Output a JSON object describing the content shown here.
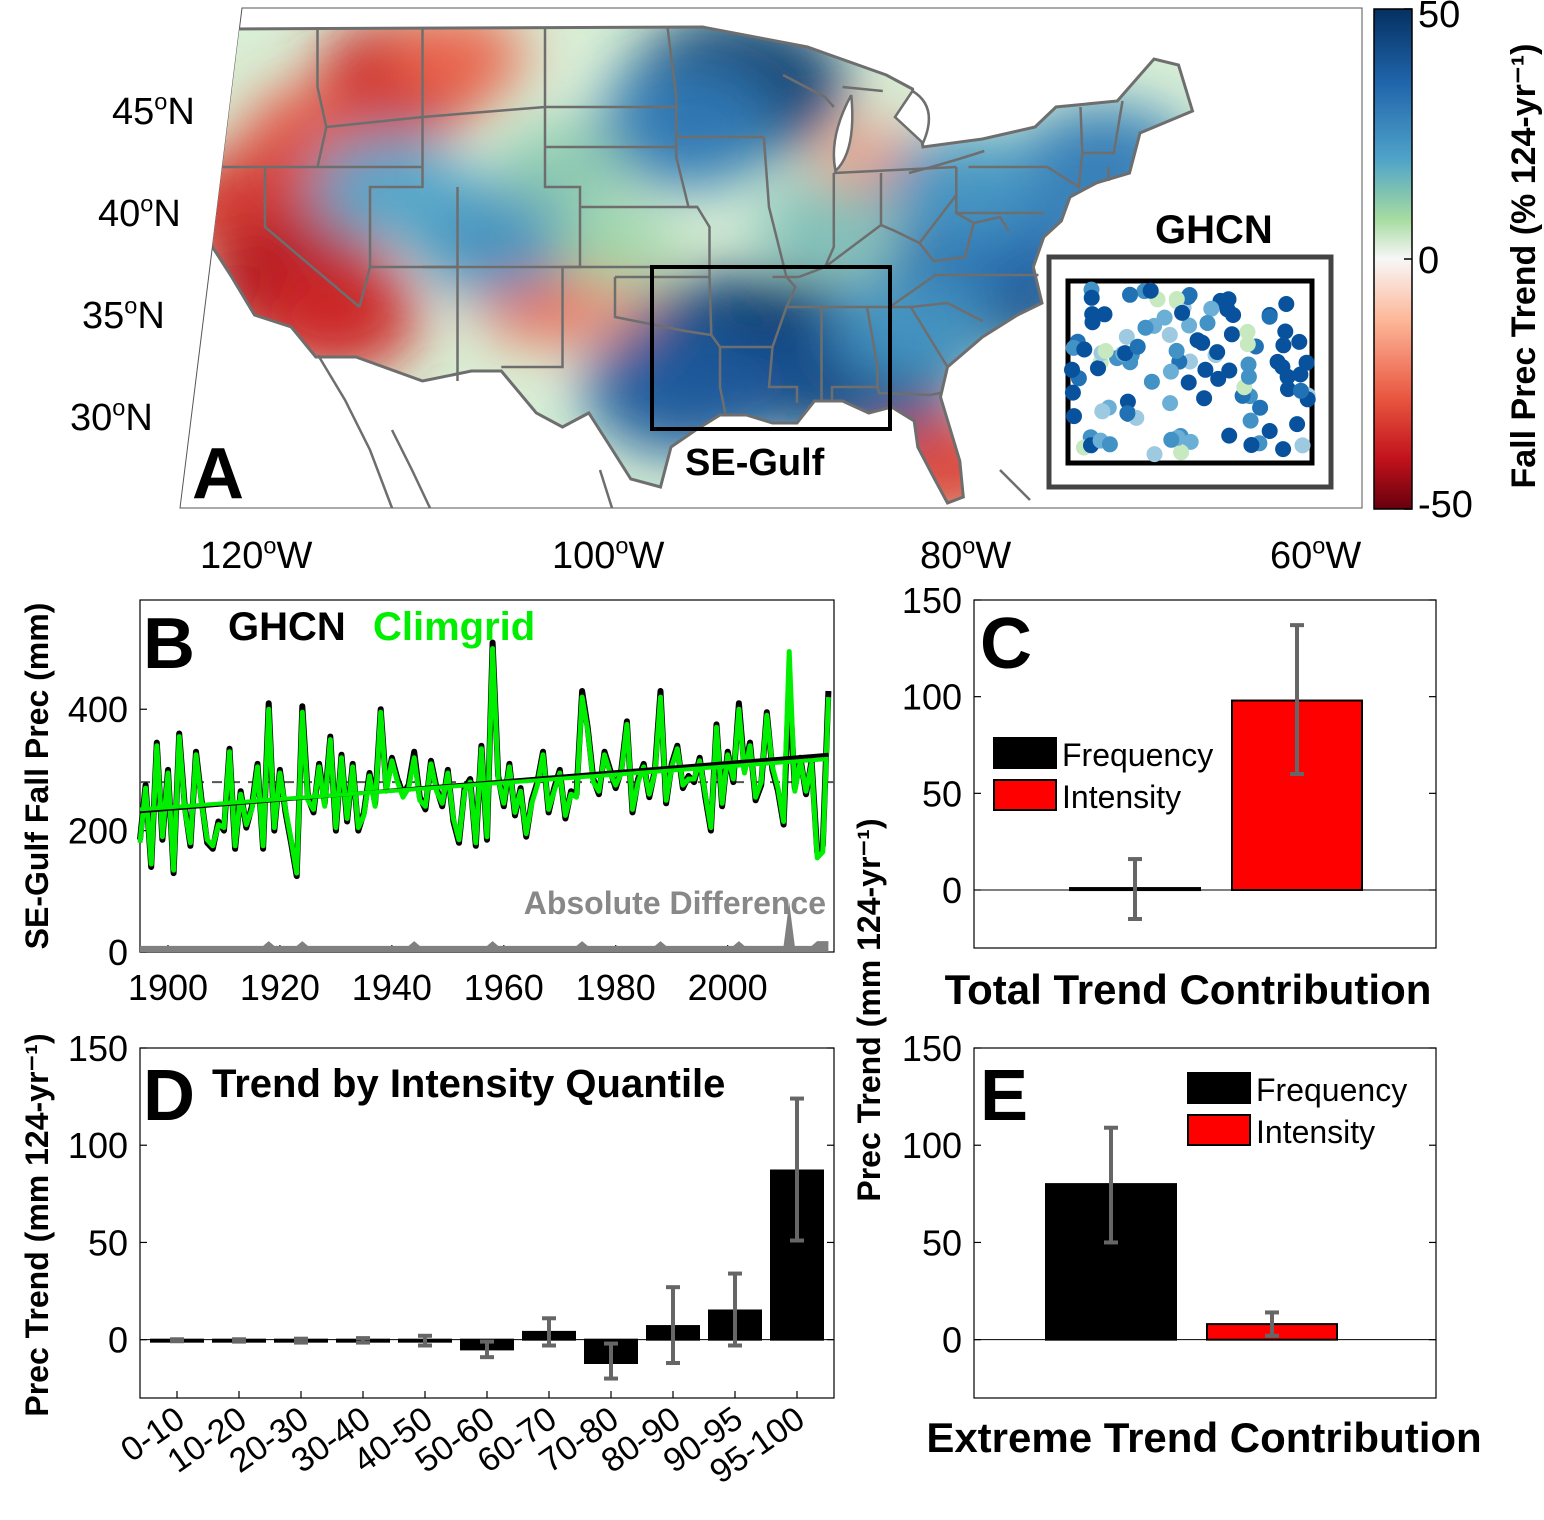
{
  "panels": {
    "a": "A",
    "b": "B",
    "c": "C",
    "d": "D",
    "e": "E"
  },
  "colors": {
    "frequency": "#000000",
    "intensity": "#ff0000",
    "ghcn": "#000000",
    "climgrid": "#00ee00",
    "difference": "#808080",
    "errorbar": "#666666",
    "state_lines": "#6e6e6e"
  },
  "chart_data": [
    {
      "panel": "A",
      "type": "heatmap",
      "title": "",
      "region_label": "SE-Gulf",
      "inset_label": "GHCN",
      "lat_ticks": [
        "45°N",
        "40°N",
        "35°N",
        "30°N"
      ],
      "lat_tick_values": [
        45,
        40,
        35,
        30
      ],
      "lon_ticks": [
        "120°W",
        "100°W",
        "80°W",
        "60°W"
      ],
      "lon_tick_values": [
        -120,
        -100,
        -80,
        -60
      ],
      "colorbar": {
        "label": "Fall Prec Trend (% 124-yr⁻¹)",
        "ticks": [
          "50",
          "0",
          "-50"
        ],
        "tick_values": [
          50,
          0,
          -50
        ],
        "range": [
          -50,
          50
        ],
        "colormap": "red-white-green-blue"
      },
      "blobs": [
        {
          "lon": -112,
          "lat": 46.5,
          "v": -32
        },
        {
          "lon": -117,
          "lat": 43.5,
          "v": -22
        },
        {
          "lon": -109,
          "lat": 47.5,
          "v": -18
        },
        {
          "lon": -121,
          "lat": 40,
          "v": -28
        },
        {
          "lon": -118,
          "lat": 36,
          "v": -38
        },
        {
          "lon": -116,
          "lat": 34.5,
          "v": -30
        },
        {
          "lon": -104,
          "lat": 35.5,
          "v": -18
        },
        {
          "lon": -98,
          "lat": 34,
          "v": -12
        },
        {
          "lon": -85,
          "lat": 42,
          "v": -12
        },
        {
          "lon": -81,
          "lat": 27,
          "v": -25
        },
        {
          "lon": -93,
          "lat": 46,
          "v": 48
        },
        {
          "lon": -96,
          "lat": 44,
          "v": 35
        },
        {
          "lon": -107,
          "lat": 38.5,
          "v": 30
        },
        {
          "lon": -113,
          "lat": 41,
          "v": 25
        },
        {
          "lon": -93,
          "lat": 33,
          "v": 48
        },
        {
          "lon": -89,
          "lat": 32.5,
          "v": 50
        },
        {
          "lon": -86,
          "lat": 32,
          "v": 45
        },
        {
          "lon": -96,
          "lat": 31,
          "v": 42
        },
        {
          "lon": -79,
          "lat": 36,
          "v": 45
        },
        {
          "lon": -78,
          "lat": 39,
          "v": 38
        },
        {
          "lon": -72,
          "lat": 42,
          "v": 35
        },
        {
          "lon": -80,
          "lat": 41,
          "v": 28
        },
        {
          "lon": -88,
          "lat": 39,
          "v": 18
        },
        {
          "lon": -100,
          "lat": 38,
          "v": 12
        },
        {
          "lon": -103,
          "lat": 42,
          "v": 15
        },
        {
          "lon": -83,
          "lat": 34,
          "v": 28
        }
      ],
      "inset_stations": {
        "count": 110,
        "seed": 7
      }
    },
    {
      "panel": "B",
      "type": "line",
      "title": "",
      "legend": [
        "GHCN",
        "Climgrid"
      ],
      "xlabel": "",
      "ylabel": "SE-Gulf Fall Prec (mm)",
      "xlim": [
        1895,
        2019
      ],
      "ylim": [
        0,
        580
      ],
      "x_ticks": [
        "1900",
        "1920",
        "1940",
        "1960",
        "1980",
        "2000"
      ],
      "x_tick_values": [
        1900,
        1920,
        1940,
        1960,
        1980,
        2000
      ],
      "y_ticks": [
        "0",
        "200",
        "400"
      ],
      "y_tick_values": [
        0,
        200,
        400
      ],
      "mean_line": 280,
      "difference_label": "Absolute Difference",
      "x": [
        1895,
        1896,
        1897,
        1898,
        1899,
        1900,
        1901,
        1902,
        1903,
        1904,
        1905,
        1906,
        1907,
        1908,
        1909,
        1910,
        1911,
        1912,
        1913,
        1914,
        1915,
        1916,
        1917,
        1918,
        1919,
        1920,
        1921,
        1922,
        1923,
        1924,
        1925,
        1926,
        1927,
        1928,
        1929,
        1930,
        1931,
        1932,
        1933,
        1934,
        1935,
        1936,
        1937,
        1938,
        1939,
        1940,
        1941,
        1942,
        1943,
        1944,
        1945,
        1946,
        1947,
        1948,
        1949,
        1950,
        1951,
        1952,
        1953,
        1954,
        1955,
        1956,
        1957,
        1958,
        1959,
        1960,
        1961,
        1962,
        1963,
        1964,
        1965,
        1966,
        1967,
        1968,
        1969,
        1970,
        1971,
        1972,
        1973,
        1974,
        1975,
        1976,
        1977,
        1978,
        1979,
        1980,
        1981,
        1982,
        1983,
        1984,
        1985,
        1986,
        1987,
        1988,
        1989,
        1990,
        1991,
        1992,
        1993,
        1994,
        1995,
        1996,
        1997,
        1998,
        1999,
        2000,
        2001,
        2002,
        2003,
        2004,
        2005,
        2006,
        2007,
        2008,
        2009,
        2010,
        2011,
        2012,
        2013,
        2014,
        2015,
        2016,
        2017,
        2018
      ],
      "series": [
        {
          "name": "GHCN",
          "values": [
            185,
            275,
            140,
            345,
            185,
            300,
            130,
            360,
            240,
            175,
            330,
            250,
            180,
            170,
            215,
            200,
            335,
            170,
            265,
            205,
            240,
            310,
            170,
            410,
            200,
            300,
            230,
            180,
            125,
            405,
            255,
            230,
            310,
            245,
            355,
            200,
            325,
            215,
            310,
            200,
            230,
            295,
            245,
            400,
            270,
            320,
            285,
            260,
            275,
            330,
            255,
            235,
            315,
            270,
            240,
            300,
            215,
            180,
            270,
            285,
            175,
            340,
            185,
            510,
            290,
            240,
            310,
            225,
            270,
            190,
            250,
            280,
            330,
            230,
            270,
            300,
            220,
            265,
            260,
            430,
            370,
            285,
            260,
            330,
            300,
            270,
            300,
            380,
            230,
            285,
            310,
            255,
            300,
            430,
            245,
            310,
            340,
            270,
            290,
            280,
            320,
            255,
            200,
            375,
            240,
            330,
            280,
            410,
            300,
            345,
            250,
            275,
            395,
            300,
            265,
            210,
            445,
            270,
            320,
            260,
            315,
            165,
            175,
            430
          ]
        },
        {
          "name": "Climgrid",
          "values": [
            180,
            270,
            145,
            340,
            190,
            295,
            135,
            355,
            235,
            180,
            325,
            245,
            185,
            175,
            210,
            205,
            330,
            175,
            260,
            210,
            235,
            305,
            175,
            400,
            205,
            295,
            235,
            185,
            130,
            395,
            250,
            235,
            305,
            240,
            350,
            205,
            320,
            220,
            305,
            205,
            225,
            290,
            240,
            395,
            265,
            315,
            280,
            255,
            270,
            320,
            250,
            240,
            310,
            265,
            245,
            295,
            220,
            185,
            265,
            280,
            180,
            335,
            190,
            500,
            285,
            245,
            305,
            230,
            265,
            195,
            245,
            275,
            325,
            235,
            265,
            295,
            225,
            260,
            255,
            420,
            365,
            280,
            265,
            325,
            295,
            275,
            295,
            375,
            235,
            280,
            305,
            260,
            295,
            420,
            250,
            305,
            335,
            275,
            285,
            285,
            315,
            260,
            205,
            370,
            245,
            325,
            285,
            400,
            295,
            340,
            255,
            280,
            390,
            305,
            270,
            215,
            495,
            265,
            315,
            265,
            310,
            155,
            165,
            420
          ]
        }
      ],
      "trend_lines": [
        {
          "name": "GHCN",
          "start": 232,
          "end": 325
        },
        {
          "name": "Climgrid",
          "start": 235,
          "end": 318
        }
      ]
    },
    {
      "panel": "C",
      "type": "bar",
      "title": "",
      "xlabel": "Total Trend Contribution",
      "ylabel": "",
      "legend": [
        "Frequency",
        "Intensity"
      ],
      "categories": [
        "Frequency",
        "Intensity"
      ],
      "values": [
        1,
        98
      ],
      "error_low": [
        -15,
        60
      ],
      "error_high": [
        16,
        137
      ],
      "ylim": [
        -30,
        150
      ],
      "y_ticks": [
        "150",
        "100",
        "50",
        "0"
      ],
      "y_tick_values": [
        150,
        100,
        50,
        0
      ]
    },
    {
      "panel": "D",
      "type": "bar",
      "title": "Trend by Intensity Quantile",
      "xlabel": "",
      "ylabel": "Prec Trend (mm 124-yr⁻¹)",
      "categories": [
        "0-10",
        "10-20",
        "20-30",
        "30-40",
        "40-50",
        "50-60",
        "60-70",
        "70-80",
        "80-90",
        "90-95",
        "95-100"
      ],
      "values": [
        -0.3,
        -0.5,
        -0.5,
        -0.5,
        -0.8,
        -5,
        4,
        -12,
        7,
        15,
        87
      ],
      "error_low": [
        -0.8,
        -1,
        -1.5,
        -1.5,
        -3,
        -9,
        -3,
        -20,
        -12,
        -3,
        51
      ],
      "error_high": [
        0.2,
        0.2,
        0.5,
        0.8,
        2,
        -1,
        11,
        -2,
        27,
        34,
        124
      ],
      "ylim": [
        -30,
        150
      ],
      "y_ticks": [
        "150",
        "100",
        "50",
        "0"
      ],
      "y_tick_values": [
        150,
        100,
        50,
        0
      ]
    },
    {
      "panel": "E",
      "type": "bar",
      "title": "",
      "xlabel": "Extreme Trend Contribution",
      "ylabel": "Prec Trend (mm 124-yr⁻¹)",
      "legend": [
        "Frequency",
        "Intensity"
      ],
      "categories": [
        "Frequency",
        "Intensity"
      ],
      "values": [
        80,
        8
      ],
      "error_low": [
        50,
        2
      ],
      "error_high": [
        109,
        14
      ],
      "ylim": [
        -30,
        150
      ],
      "y_ticks": [
        "150",
        "100",
        "50",
        "0"
      ],
      "y_tick_values": [
        150,
        100,
        50,
        0
      ]
    }
  ]
}
